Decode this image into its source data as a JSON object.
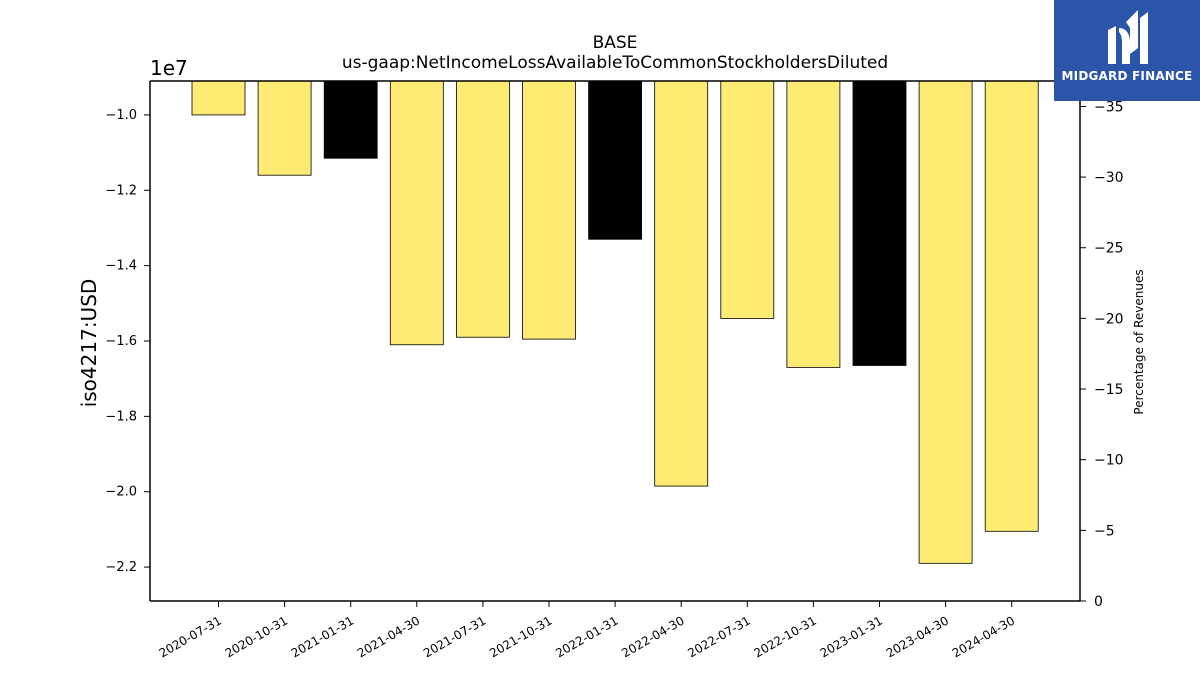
{
  "chart_data": {
    "type": "bar",
    "title": "BASE",
    "subtitle": "us-gaap:NetIncomeLossAvailableToCommonStockholdersDiluted",
    "ylabel": "iso4217:USD",
    "y_offset_label": "1e7",
    "y2label": "Percentage of Revenues",
    "categories": [
      "2020-07-31",
      "2020-10-31",
      "2021-01-31",
      "2021-04-30",
      "2021-07-31",
      "2021-10-31",
      "2022-01-31",
      "2022-04-30",
      "2022-07-31",
      "2022-10-31",
      "2023-01-31",
      "2023-04-30",
      "2024-04-30"
    ],
    "values": [
      -10000000,
      -11600000,
      -11150000,
      -16100000,
      -15900000,
      -15950000,
      -13300000,
      -19850000,
      -15400000,
      -16700000,
      -16650000,
      -21900000,
      -21050000
    ],
    "bar_colors": [
      "#fdeb73",
      "#fdeb73",
      "#000000",
      "#fdeb73",
      "#fdeb73",
      "#fdeb73",
      "#000000",
      "#fdeb73",
      "#fdeb73",
      "#fdeb73",
      "#000000",
      "#fdeb73",
      "#fdeb73"
    ],
    "ylim": [
      -22900000,
      -9100000
    ],
    "yticks": [
      -10000000,
      -12000000,
      -14000000,
      -16000000,
      -18000000,
      -20000000,
      -22000000
    ],
    "ytick_labels": [
      "−1.0",
      "−1.2",
      "−1.4",
      "−1.6",
      "−1.8",
      "−2.0",
      "−2.2"
    ],
    "y2lim": [
      0,
      -36.8
    ],
    "y2ticks": [
      -35,
      -30,
      -25,
      -20,
      -15,
      -10,
      -5,
      0
    ],
    "y2tick_labels": [
      "−35",
      "−30",
      "−25",
      "−20",
      "−15",
      "−10",
      "−5",
      "0"
    ],
    "grid": false,
    "legend": "none"
  },
  "logo": {
    "name": "MIDGARD FINANCE"
  }
}
